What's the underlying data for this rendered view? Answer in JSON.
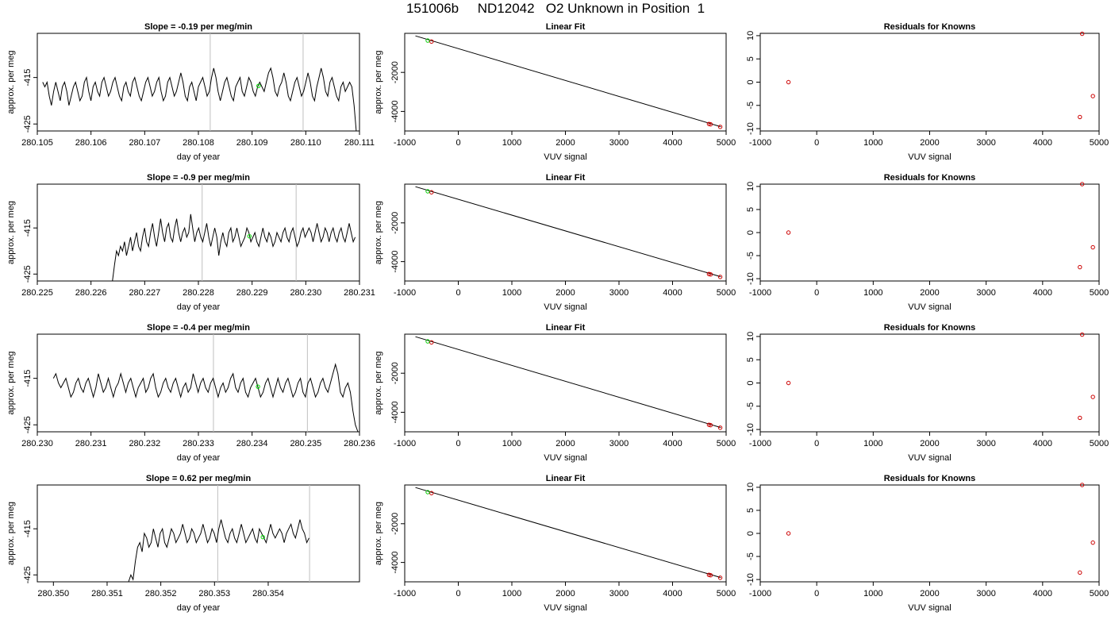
{
  "figure": {
    "title": "151006b     ND12042   O2 Unknown in Position  1"
  },
  "chart_data": [
    {
      "type": "line",
      "panel": "timeseries",
      "title": "Slope =  -0.19  per meg/min",
      "xlabel": "day of year",
      "ylabel": "approx. per meg",
      "xlim": [
        280.105,
        280.111
      ],
      "ylim": [
        -426.5,
        -405.5
      ],
      "xticks": [
        "280.105",
        "280.106",
        "280.107",
        "280.108",
        "280.109",
        "280.110",
        "280.111"
      ],
      "yticks": [
        "-425",
        "-415"
      ],
      "vlines": [
        280.10822,
        280.10995
      ],
      "marker": {
        "x": 280.10912,
        "y": -416.8,
        "color": "#00dd00"
      },
      "x_start": 280.1051,
      "x_end": 280.11094,
      "y": [
        -416,
        -417,
        -416,
        -419,
        -421,
        -418,
        -416,
        -418,
        -420,
        -417,
        -416,
        -418,
        -421,
        -419,
        -417,
        -416,
        -418,
        -420,
        -419,
        -416,
        -415,
        -418,
        -420,
        -417,
        -416,
        -418,
        -419,
        -416,
        -415,
        -417,
        -419,
        -418,
        -416,
        -415,
        -417,
        -419,
        -420,
        -417,
        -416,
        -418,
        -419,
        -416,
        -415,
        -417,
        -419,
        -420,
        -418,
        -416,
        -415,
        -417,
        -419,
        -418,
        -416,
        -415,
        -418,
        -420,
        -419,
        -416,
        -415,
        -417,
        -419,
        -418,
        -416,
        -414,
        -416,
        -419,
        -420,
        -417,
        -416,
        -418,
        -420,
        -417,
        -416,
        -415,
        -417,
        -419,
        -418,
        -415,
        -413,
        -415,
        -418,
        -420,
        -418,
        -416,
        -415,
        -417,
        -419,
        -420,
        -417,
        -416,
        -415,
        -418,
        -419,
        -417,
        -415,
        -416,
        -418,
        -419,
        -417,
        -416,
        -417,
        -418,
        -416,
        -414,
        -413,
        -415,
        -418,
        -419,
        -417,
        -416,
        -414,
        -416,
        -419,
        -420,
        -418,
        -416,
        -415,
        -417,
        -419,
        -418,
        -416,
        -414,
        -416,
        -419,
        -420,
        -417,
        -415,
        -413,
        -415,
        -418,
        -419,
        -416,
        -415,
        -417,
        -419,
        -420,
        -417,
        -416,
        -418,
        -417,
        -416,
        -417,
        -421,
        -427
      ]
    },
    {
      "type": "scatter",
      "panel": "linear-fit",
      "title": "Linear Fit",
      "xlabel": "VUV signal",
      "ylabel": "approx. per meg",
      "xlim": [
        -1000,
        5000
      ],
      "ylim": [
        -5000,
        0
      ],
      "xticks": [
        "-1000",
        "0",
        "1000",
        "2000",
        "3000",
        "4000",
        "5000"
      ],
      "yticks": [
        "-2000",
        "-4000"
      ],
      "fit_line": {
        "x1": -800,
        "y1": -130,
        "x2": 4900,
        "y2": -4780
      },
      "points_red": [
        {
          "x": -500,
          "y": -420
        },
        {
          "x": 4680,
          "y": -4640
        },
        {
          "x": 4710,
          "y": -4660
        },
        {
          "x": 4890,
          "y": -4790
        }
      ],
      "points_green": [
        {
          "x": -570,
          "y": -370
        }
      ]
    },
    {
      "type": "scatter",
      "panel": "residuals",
      "title": "Residuals for Knowns",
      "xlabel": "VUV signal",
      "xlim": [
        -1000,
        5000
      ],
      "ylim": [
        -10.5,
        10.5
      ],
      "xticks": [
        "-1000",
        "0",
        "1000",
        "2000",
        "3000",
        "4000",
        "5000"
      ],
      "yticks": [
        "10",
        "5",
        "0",
        "-5",
        "-10"
      ],
      "points_red": [
        {
          "x": -500,
          "y": 0
        },
        {
          "x": 4700,
          "y": 10.4
        },
        {
          "x": 4660,
          "y": -7.5
        },
        {
          "x": 4890,
          "y": -3
        }
      ]
    },
    {
      "type": "line",
      "panel": "timeseries",
      "title": "Slope =  -0.9  per meg/min",
      "xlabel": "day of year",
      "ylabel": "approx. per meg",
      "xlim": [
        280.225,
        280.231
      ],
      "ylim": [
        -426.5,
        -405.5
      ],
      "xticks": [
        "280.225",
        "280.226",
        "280.227",
        "280.228",
        "280.229",
        "280.230",
        "280.231"
      ],
      "yticks": [
        "-425",
        "-415"
      ],
      "vlines": [
        280.22807,
        280.22982
      ],
      "marker": {
        "x": 280.22895,
        "y": -416.8,
        "color": "#00dd00"
      },
      "x_start": 280.2264,
      "x_end": 280.23092,
      "y": [
        -427,
        -423,
        -420,
        -421,
        -419,
        -420,
        -418,
        -421,
        -419,
        -417,
        -420,
        -418,
        -416,
        -419,
        -420,
        -417,
        -415,
        -418,
        -419,
        -416,
        -414,
        -417,
        -419,
        -416,
        -413,
        -416,
        -418,
        -415,
        -414,
        -417,
        -418,
        -415,
        -413,
        -416,
        -418,
        -416,
        -415,
        -417,
        -416,
        -412,
        -415,
        -418,
        -416,
        -415,
        -417,
        -418,
        -416,
        -414,
        -417,
        -419,
        -417,
        -415,
        -417,
        -421,
        -418,
        -416,
        -418,
        -419,
        -416,
        -415,
        -418,
        -417,
        -415,
        -417,
        -419,
        -418,
        -417,
        -415,
        -416,
        -418,
        -417,
        -416,
        -418,
        -419,
        -417,
        -415,
        -417,
        -418,
        -416,
        -417,
        -419,
        -418,
        -416,
        -417,
        -418,
        -416,
        -415,
        -417,
        -418,
        -416,
        -415,
        -417,
        -419,
        -418,
        -416,
        -415,
        -417,
        -416,
        -415,
        -416,
        -418,
        -416,
        -414,
        -416,
        -418,
        -417,
        -415,
        -416,
        -418,
        -416,
        -415,
        -417,
        -418,
        -416,
        -415,
        -417,
        -418,
        -416,
        -414,
        -416,
        -418,
        -417
      ]
    },
    {
      "type": "scatter",
      "panel": "linear-fit",
      "title": "Linear Fit",
      "xlabel": "VUV signal",
      "ylabel": "approx. per meg",
      "xlim": [
        -1000,
        5000
      ],
      "ylim": [
        -5000,
        0
      ],
      "xticks": [
        "-1000",
        "0",
        "1000",
        "2000",
        "3000",
        "4000",
        "5000"
      ],
      "yticks": [
        "-2000",
        "-4000"
      ],
      "fit_line": {
        "x1": -800,
        "y1": -130,
        "x2": 4900,
        "y2": -4780
      },
      "points_red": [
        {
          "x": -500,
          "y": -420
        },
        {
          "x": 4680,
          "y": -4640
        },
        {
          "x": 4710,
          "y": -4660
        },
        {
          "x": 4890,
          "y": -4790
        }
      ],
      "points_green": [
        {
          "x": -570,
          "y": -370
        }
      ]
    },
    {
      "type": "scatter",
      "panel": "residuals",
      "title": "Residuals for Knowns",
      "xlabel": "VUV signal",
      "xlim": [
        -1000,
        5000
      ],
      "ylim": [
        -10.5,
        10.5
      ],
      "xticks": [
        "-1000",
        "0",
        "1000",
        "2000",
        "3000",
        "4000",
        "5000"
      ],
      "yticks": [
        "10",
        "5",
        "0",
        "-5",
        "-10"
      ],
      "points_red": [
        {
          "x": -500,
          "y": 0
        },
        {
          "x": 4700,
          "y": 10.5
        },
        {
          "x": 4660,
          "y": -7.5
        },
        {
          "x": 4890,
          "y": -3.2
        }
      ]
    },
    {
      "type": "line",
      "panel": "timeseries",
      "title": "Slope =  -0.4  per meg/min",
      "xlabel": "day of year",
      "ylabel": "approx. per meg",
      "xlim": [
        280.23,
        280.236
      ],
      "ylim": [
        -426.5,
        -405.5
      ],
      "xticks": [
        "280.230",
        "280.231",
        "280.232",
        "280.233",
        "280.234",
        "280.235",
        "280.236"
      ],
      "yticks": [
        "-425",
        "-415"
      ],
      "vlines": [
        280.23328,
        280.23503
      ],
      "marker": {
        "x": 280.23411,
        "y": -416.8,
        "color": "#00dd00"
      },
      "x_start": 280.2303,
      "x_end": 280.23597,
      "y": [
        -415,
        -414,
        -416,
        -417,
        -416,
        -415,
        -417,
        -419,
        -418,
        -416,
        -415,
        -417,
        -418,
        -416,
        -415,
        -417,
        -419,
        -417,
        -414,
        -416,
        -418,
        -417,
        -415,
        -417,
        -419,
        -417,
        -416,
        -414,
        -416,
        -418,
        -416,
        -415,
        -417,
        -419,
        -417,
        -416,
        -415,
        -418,
        -417,
        -415,
        -414,
        -417,
        -419,
        -418,
        -416,
        -415,
        -417,
        -418,
        -416,
        -415,
        -417,
        -419,
        -417,
        -416,
        -418,
        -417,
        -414,
        -416,
        -418,
        -416,
        -415,
        -417,
        -418,
        -416,
        -415,
        -417,
        -419,
        -417,
        -416,
        -418,
        -417,
        -415,
        -414,
        -417,
        -418,
        -416,
        -415,
        -418,
        -419,
        -417,
        -416,
        -415,
        -417,
        -419,
        -418,
        -416,
        -415,
        -417,
        -419,
        -417,
        -415,
        -417,
        -418,
        -416,
        -415,
        -417,
        -419,
        -418,
        -416,
        -415,
        -418,
        -419,
        -416,
        -415,
        -417,
        -419,
        -418,
        -416,
        -415,
        -417,
        -418,
        -416,
        -414,
        -412,
        -414,
        -418,
        -419,
        -417,
        -416,
        -418,
        -422,
        -425,
        -427
      ]
    },
    {
      "type": "scatter",
      "panel": "linear-fit",
      "title": "Linear Fit",
      "xlabel": "VUV signal",
      "ylabel": "approx. per meg",
      "xlim": [
        -1000,
        5000
      ],
      "ylim": [
        -5000,
        0
      ],
      "xticks": [
        "-1000",
        "0",
        "1000",
        "2000",
        "3000",
        "4000",
        "5000"
      ],
      "yticks": [
        "-2000",
        "-4000"
      ],
      "fit_line": {
        "x1": -800,
        "y1": -130,
        "x2": 4900,
        "y2": -4780
      },
      "points_red": [
        {
          "x": -500,
          "y": -420
        },
        {
          "x": 4680,
          "y": -4640
        },
        {
          "x": 4710,
          "y": -4660
        },
        {
          "x": 4890,
          "y": -4790
        }
      ],
      "points_green": [
        {
          "x": -570,
          "y": -370
        }
      ]
    },
    {
      "type": "scatter",
      "panel": "residuals",
      "title": "Residuals for Knowns",
      "xlabel": "VUV signal",
      "xlim": [
        -1000,
        5000
      ],
      "ylim": [
        -10.5,
        10.5
      ],
      "xticks": [
        "-1000",
        "0",
        "1000",
        "2000",
        "3000",
        "4000",
        "5000"
      ],
      "yticks": [
        "10",
        "5",
        "0",
        "-5",
        "-10"
      ],
      "points_red": [
        {
          "x": -500,
          "y": 0
        },
        {
          "x": 4700,
          "y": 10.4
        },
        {
          "x": 4660,
          "y": -7.5
        },
        {
          "x": 4890,
          "y": -3
        }
      ]
    },
    {
      "type": "line",
      "panel": "timeseries",
      "title": "Slope =  0.62  per meg/min",
      "xlabel": "day of year",
      "ylabel": "approx. per meg",
      "xlim": [
        280.3497,
        280.3557
      ],
      "ylim": [
        -426.5,
        -405.5
      ],
      "xticks": [
        "280.350",
        "280.351",
        "280.352",
        "280.353",
        "280.354"
      ],
      "yticks": [
        "-425",
        "-415"
      ],
      "vlines": [
        280.35306,
        280.35477
      ],
      "marker": {
        "x": 280.3539,
        "y": -416.8,
        "color": "#00dd00"
      },
      "x_start": 280.3514,
      "x_end": 280.35476,
      "y": [
        -427,
        -425,
        -426,
        -422,
        -419,
        -418,
        -420,
        -416,
        -417,
        -419,
        -418,
        -415,
        -417,
        -419,
        -416,
        -415,
        -418,
        -419,
        -417,
        -415,
        -416,
        -418,
        -417,
        -416,
        -414,
        -416,
        -418,
        -417,
        -415,
        -416,
        -418,
        -417,
        -416,
        -414,
        -416,
        -418,
        -417,
        -415,
        -416,
        -418,
        -415,
        -413,
        -415,
        -417,
        -418,
        -416,
        -415,
        -417,
        -418,
        -416,
        -414,
        -416,
        -418,
        -417,
        -416,
        -415,
        -417,
        -418,
        -415,
        -416,
        -417,
        -418,
        -416,
        -414,
        -416,
        -417,
        -416,
        -415,
        -416,
        -418,
        -416,
        -415,
        -414,
        -416,
        -417,
        -415,
        -413,
        -415,
        -416,
        -418,
        -417
      ]
    },
    {
      "type": "scatter",
      "panel": "linear-fit",
      "title": "Linear Fit",
      "xlabel": "VUV signal",
      "ylabel": "approx. per meg",
      "xlim": [
        -1000,
        5000
      ],
      "ylim": [
        -5000,
        0
      ],
      "xticks": [
        "-1000",
        "0",
        "1000",
        "2000",
        "3000",
        "4000",
        "5000"
      ],
      "yticks": [
        "-2000",
        "-4000"
      ],
      "fit_line": {
        "x1": -800,
        "y1": -130,
        "x2": 4900,
        "y2": -4780
      },
      "points_red": [
        {
          "x": -500,
          "y": -420
        },
        {
          "x": 4680,
          "y": -4640
        },
        {
          "x": 4710,
          "y": -4660
        },
        {
          "x": 4890,
          "y": -4790
        }
      ],
      "points_green": [
        {
          "x": -570,
          "y": -370
        }
      ]
    },
    {
      "type": "scatter",
      "panel": "residuals",
      "title": "Residuals for Knowns",
      "xlabel": "VUV signal",
      "xlim": [
        -1000,
        5000
      ],
      "ylim": [
        -10.5,
        10.5
      ],
      "xticks": [
        "-1000",
        "0",
        "1000",
        "2000",
        "3000",
        "4000",
        "5000"
      ],
      "yticks": [
        "10",
        "5",
        "0",
        "-5",
        "-10"
      ],
      "points_red": [
        {
          "x": -500,
          "y": 0
        },
        {
          "x": 4700,
          "y": 10.5
        },
        {
          "x": 4660,
          "y": -8.5
        },
        {
          "x": 4890,
          "y": -2
        }
      ]
    }
  ]
}
